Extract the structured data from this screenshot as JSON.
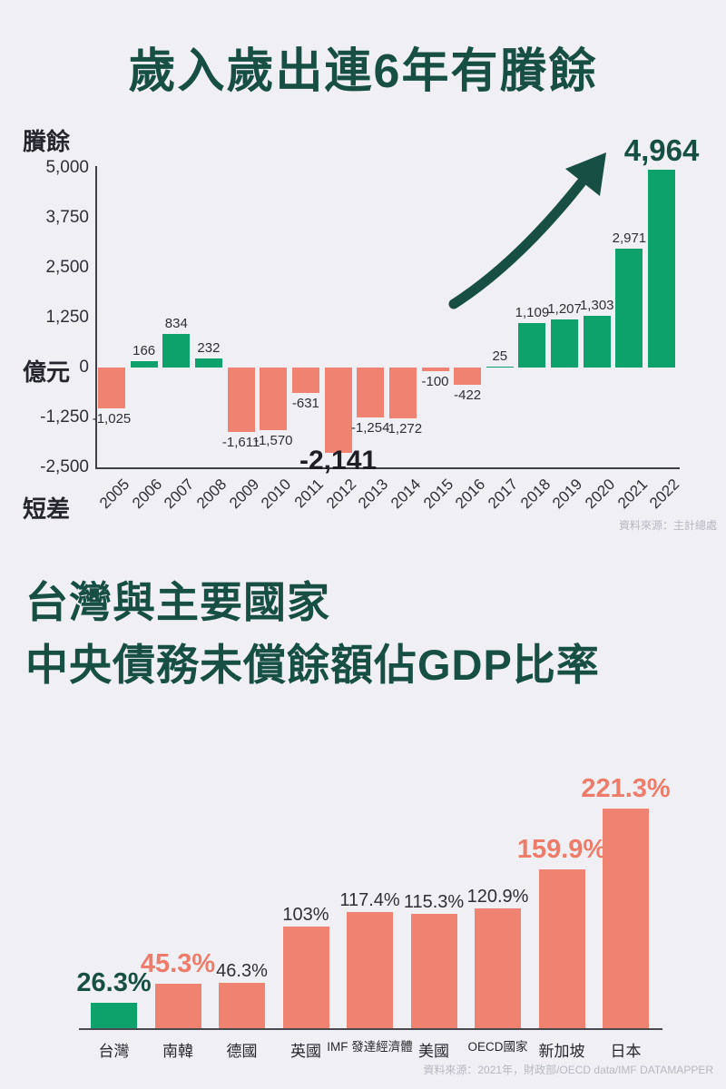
{
  "page": {
    "background_color": "#f0f0f4"
  },
  "palette": {
    "dark_green": "#174f45",
    "green": "#0da26b",
    "salmon": "#ef8270",
    "ink": "#2e2e36",
    "muted_gray": "#b7b7c2"
  },
  "chart_data": [
    {
      "type": "bar",
      "title": "歲入歲出連6年有賸餘",
      "y_axis_top_label": "賸餘",
      "y_axis_unit_label": "億元",
      "y_axis_bottom_label": "短差",
      "categories": [
        "2005",
        "2006",
        "2007",
        "2008",
        "2009",
        "2010",
        "2011",
        "2012",
        "2013",
        "2014",
        "2015",
        "2016",
        "2017",
        "2018",
        "2019",
        "2020",
        "2021",
        "2022"
      ],
      "values": [
        -1025,
        166,
        834,
        232,
        -1611,
        -1570,
        -631,
        -2141,
        -1254,
        -1272,
        -100,
        -422,
        25,
        1109,
        1207,
        1303,
        2971,
        4964
      ],
      "value_labels": [
        "-1,025",
        "166",
        "834",
        "232",
        "-1,611",
        "-1,570",
        "-631",
        "-2,141",
        "-1,254",
        "-1,272",
        "-100",
        "-422",
        "25",
        "1,109",
        "1,207",
        "1,303",
        "2,971",
        "4,964"
      ],
      "ytick_values": [
        5000,
        3750,
        2500,
        1250,
        0,
        -1250,
        -2500
      ],
      "ytick_labels": [
        "5,000",
        "3,750",
        "2,500",
        "1,250",
        "0",
        "-1,250",
        "-2,500"
      ],
      "ylim": [
        -2500,
        5000
      ],
      "grid": false,
      "legend": "none",
      "positive_color": "#0da26b",
      "negative_color": "#ef8270",
      "emphasized_max_label": "4,964",
      "emphasized_min_label": "-2,141",
      "annotation": "upward curved growth arrow pointing at 4,964",
      "source": "資料來源：主計總處"
    },
    {
      "type": "bar",
      "title": "台灣與主要國家中央債務未償餘額佔GDP比率",
      "title_lines": [
        "台灣與主要國家",
        "中央債務未償餘額佔GDP比率"
      ],
      "categories": [
        "台灣",
        "南韓",
        "德國",
        "英國",
        "IMF 發達經濟體",
        "美國",
        "OECD國家",
        "新加坡",
        "日本"
      ],
      "values": [
        26.3,
        45.3,
        46.3,
        103,
        117.4,
        115.3,
        120.9,
        159.9,
        221.3
      ],
      "value_labels": [
        "26.3%",
        "45.3%",
        "46.3%",
        "103%",
        "117.4%",
        "115.3%",
        "120.9%",
        "159.9%",
        "221.3%"
      ],
      "label_styles": [
        "green-big",
        "salmon-big",
        "plain",
        "plain",
        "plain",
        "plain",
        "plain",
        "salmon-big",
        "salmon-big"
      ],
      "highlight_index": 0,
      "highlight_color": "#0da26b",
      "bar_color": "#ef8270",
      "ylim": [
        0,
        240
      ],
      "grid": false,
      "legend": "none",
      "source": "資料來源：2021年，財政部/OECD data/IMF DATAMAPPER"
    }
  ]
}
